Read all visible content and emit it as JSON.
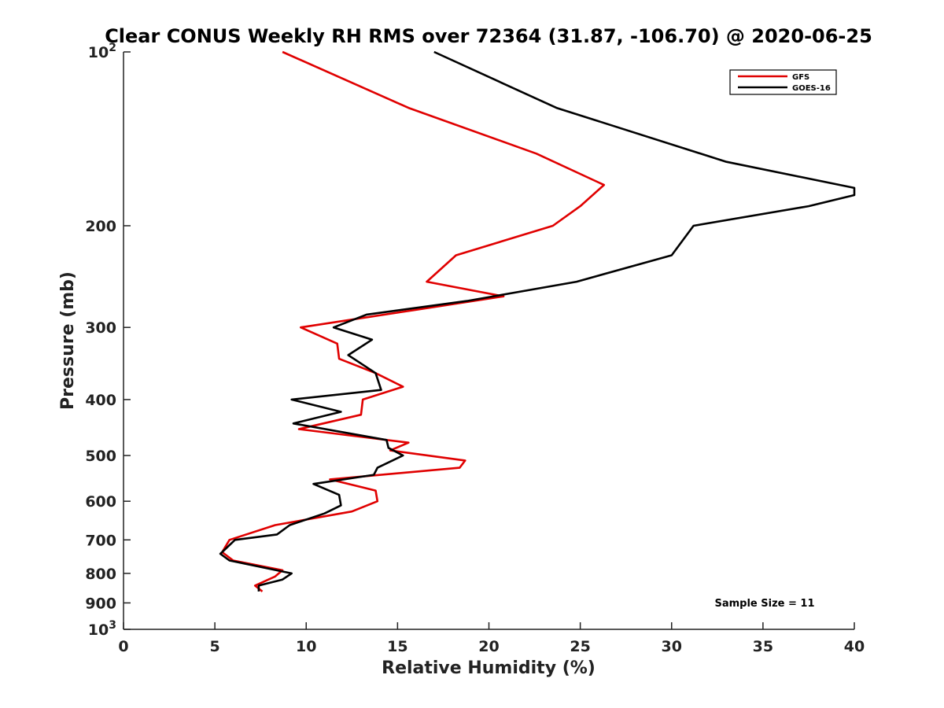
{
  "chart_data": {
    "type": "line",
    "title": "Clear CONUS Weekly RH RMS over 72364 (31.87, -106.70) @ 2020-06-25",
    "xlabel": "Relative Humidity (%)",
    "ylabel": "Pressure (mb)",
    "xlim": [
      0,
      40
    ],
    "ylim": [
      100,
      1000
    ],
    "y_scale": "log",
    "y_inverted": true,
    "x_ticks": [
      "0",
      "5",
      "10",
      "15",
      "20",
      "25",
      "30",
      "35",
      "40"
    ],
    "y_ticks": [
      {
        "value": 100,
        "base": "10",
        "exp": "2"
      },
      {
        "value": 200,
        "label": "200"
      },
      {
        "value": 300,
        "label": "300"
      },
      {
        "value": 400,
        "label": "400"
      },
      {
        "value": 500,
        "label": "500"
      },
      {
        "value": 600,
        "label": "600"
      },
      {
        "value": 700,
        "label": "700"
      },
      {
        "value": 800,
        "label": "800"
      },
      {
        "value": 900,
        "label": "900"
      },
      {
        "value": 1000,
        "base": "10",
        "exp": "3"
      }
    ],
    "legend_position": "top-right",
    "annotation": "Sample Size = 11",
    "series": [
      {
        "name": "GFS",
        "color": "#e00000",
        "points": [
          [
            8.7,
            100
          ],
          [
            15.6,
            125
          ],
          [
            22.6,
            150
          ],
          [
            26.3,
            170
          ],
          [
            25.0,
            185
          ],
          [
            23.5,
            200
          ],
          [
            18.2,
            225
          ],
          [
            16.6,
            250
          ],
          [
            20.8,
            265
          ],
          [
            15.9,
            280
          ],
          [
            9.7,
            300
          ],
          [
            11.7,
            320
          ],
          [
            11.8,
            340
          ],
          [
            13.8,
            360
          ],
          [
            15.3,
            380
          ],
          [
            13.1,
            400
          ],
          [
            13.0,
            425
          ],
          [
            9.6,
            450
          ],
          [
            15.6,
            475
          ],
          [
            14.6,
            490
          ],
          [
            18.7,
            510
          ],
          [
            18.4,
            525
          ],
          [
            11.3,
            550
          ],
          [
            13.8,
            575
          ],
          [
            13.9,
            600
          ],
          [
            12.5,
            625
          ],
          [
            8.3,
            660
          ],
          [
            5.8,
            700
          ],
          [
            5.4,
            735
          ],
          [
            6.0,
            760
          ],
          [
            8.7,
            790
          ],
          [
            8.3,
            810
          ],
          [
            7.2,
            840
          ],
          [
            7.6,
            860
          ]
        ]
      },
      {
        "name": "GOES-16",
        "color": "#000000",
        "points": [
          [
            17.0,
            100
          ],
          [
            23.7,
            125
          ],
          [
            33.0,
            155
          ],
          [
            40.0,
            172
          ],
          [
            40.0,
            177
          ],
          [
            37.5,
            185
          ],
          [
            31.2,
            200
          ],
          [
            30.0,
            225
          ],
          [
            24.8,
            250
          ],
          [
            18.8,
            270
          ],
          [
            13.3,
            285
          ],
          [
            11.5,
            300
          ],
          [
            13.6,
            315
          ],
          [
            12.3,
            335
          ],
          [
            13.8,
            360
          ],
          [
            14.1,
            385
          ],
          [
            9.2,
            400
          ],
          [
            11.9,
            420
          ],
          [
            9.3,
            440
          ],
          [
            14.4,
            470
          ],
          [
            14.5,
            485
          ],
          [
            15.3,
            500
          ],
          [
            13.9,
            525
          ],
          [
            13.7,
            540
          ],
          [
            10.4,
            560
          ],
          [
            11.8,
            585
          ],
          [
            11.9,
            610
          ],
          [
            11.0,
            630
          ],
          [
            9.1,
            660
          ],
          [
            8.4,
            685
          ],
          [
            6.1,
            700
          ],
          [
            5.3,
            740
          ],
          [
            5.8,
            760
          ],
          [
            9.2,
            800
          ],
          [
            8.7,
            820
          ],
          [
            7.4,
            840
          ],
          [
            7.4,
            860
          ]
        ]
      }
    ]
  }
}
